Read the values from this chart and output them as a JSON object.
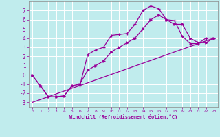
{
  "xlabel": "Windchill (Refroidissement éolien,°C)",
  "bg_color": "#c0eced",
  "grid_color": "#ffffff",
  "line_color": "#990099",
  "xlim": [
    -0.5,
    23.5
  ],
  "ylim": [
    -3.5,
    8.0
  ],
  "xticks": [
    0,
    1,
    2,
    3,
    4,
    5,
    6,
    7,
    8,
    9,
    10,
    11,
    12,
    13,
    14,
    15,
    16,
    17,
    18,
    19,
    20,
    21,
    22,
    23
  ],
  "yticks": [
    -3,
    -2,
    -1,
    0,
    1,
    2,
    3,
    4,
    5,
    6,
    7
  ],
  "line1_x": [
    0,
    1,
    2,
    3,
    4,
    5,
    6,
    7,
    8,
    9,
    10,
    11,
    12,
    13,
    14,
    15,
    16,
    17,
    18,
    19,
    20,
    21,
    22,
    23
  ],
  "line1_y": [
    -0.1,
    -1.2,
    -2.4,
    -2.4,
    -2.3,
    -1.2,
    -1.2,
    2.2,
    2.7,
    3.0,
    4.3,
    4.4,
    4.5,
    5.5,
    7.0,
    7.5,
    7.2,
    6.0,
    5.9,
    4.2,
    3.4,
    3.4,
    4.0,
    4.0
  ],
  "line2_x": [
    0,
    1,
    2,
    3,
    4,
    5,
    6,
    7,
    8,
    9,
    10,
    11,
    12,
    13,
    14,
    15,
    16,
    17,
    18,
    19,
    20,
    21,
    22,
    23
  ],
  "line2_y": [
    -0.1,
    -1.2,
    -2.4,
    -2.4,
    -2.3,
    -1.2,
    -1.0,
    0.5,
    1.0,
    1.5,
    2.5,
    3.0,
    3.5,
    4.0,
    5.0,
    6.0,
    6.5,
    6.0,
    5.5,
    5.5,
    4.0,
    3.5,
    3.5,
    4.0
  ],
  "line3_x": [
    0,
    23
  ],
  "line3_y": [
    -3.0,
    4.0
  ]
}
